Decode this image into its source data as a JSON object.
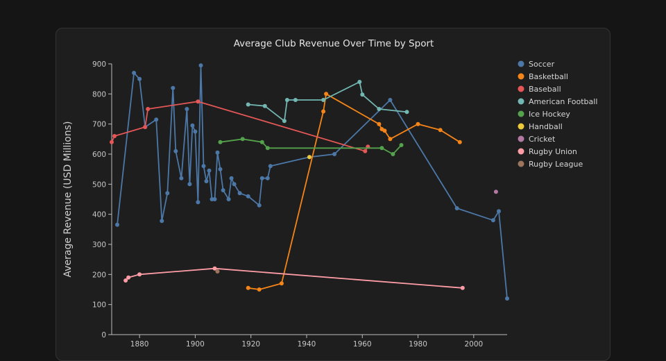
{
  "chart_data": {
    "type": "line",
    "title": "Average Club Revenue Over Time by Sport",
    "xlabel": "",
    "ylabel": "Average Revenue (USD Millions)",
    "xlim": [
      1870,
      2012
    ],
    "ylim": [
      0,
      900
    ],
    "x_ticks": [
      1880,
      1900,
      1920,
      1940,
      1960,
      1980,
      2000
    ],
    "y_ticks": [
      0,
      100,
      200,
      300,
      400,
      500,
      600,
      700,
      800,
      900
    ],
    "grid": false,
    "legend_position": "right",
    "series": [
      {
        "name": "Soccer",
        "color": "#4c78a8",
        "points": [
          [
            1872,
            365
          ],
          [
            1878,
            870
          ],
          [
            1880,
            850
          ],
          [
            1882,
            690
          ],
          [
            1886,
            715
          ],
          [
            1888,
            378
          ],
          [
            1890,
            470
          ],
          [
            1892,
            820
          ],
          [
            1893,
            610
          ],
          [
            1895,
            520
          ],
          [
            1897,
            750
          ],
          [
            1898,
            500
          ],
          [
            1899,
            695
          ],
          [
            1900,
            675
          ],
          [
            1901,
            440
          ],
          [
            1902,
            895
          ],
          [
            1903,
            560
          ],
          [
            1904,
            510
          ],
          [
            1905,
            545
          ],
          [
            1906,
            450
          ],
          [
            1907,
            450
          ],
          [
            1908,
            605
          ],
          [
            1909,
            550
          ],
          [
            1910,
            480
          ],
          [
            1912,
            450
          ],
          [
            1913,
            520
          ],
          [
            1914,
            500
          ],
          [
            1916,
            470
          ],
          [
            1919,
            460
          ],
          [
            1923,
            430
          ],
          [
            1924,
            520
          ],
          [
            1926,
            520
          ],
          [
            1927,
            560
          ],
          [
            1941,
            590
          ],
          [
            1950,
            600
          ],
          [
            1970,
            780
          ],
          [
            1994,
            420
          ],
          [
            2007,
            380
          ],
          [
            2009,
            410
          ],
          [
            2012,
            120
          ]
        ]
      },
      {
        "name": "Basketball",
        "color": "#f58518",
        "points": [
          [
            1919,
            155
          ],
          [
            1923,
            150
          ],
          [
            1931,
            170
          ],
          [
            1946,
            742
          ],
          [
            1947,
            800
          ],
          [
            1966,
            700
          ],
          [
            1967,
            683
          ],
          [
            1968,
            678
          ],
          [
            1970,
            650
          ],
          [
            1980,
            700
          ],
          [
            1988,
            680
          ],
          [
            1995,
            640
          ]
        ]
      },
      {
        "name": "Baseball",
        "color": "#e45756",
        "points": [
          [
            1870,
            640
          ],
          [
            1871,
            660
          ],
          [
            1882,
            690
          ],
          [
            1883,
            750
          ],
          [
            1901,
            775
          ],
          [
            1961,
            610
          ],
          [
            1962,
            625
          ]
        ]
      },
      {
        "name": "American Football",
        "color": "#72b7b2",
        "points": [
          [
            1919,
            765
          ],
          [
            1925,
            760
          ],
          [
            1932,
            710
          ],
          [
            1933,
            780
          ],
          [
            1936,
            780
          ],
          [
            1946,
            780
          ],
          [
            1959,
            840
          ],
          [
            1960,
            798
          ],
          [
            1966,
            750
          ],
          [
            1976,
            740
          ]
        ]
      },
      {
        "name": "Ice Hockey",
        "color": "#54a24b",
        "points": [
          [
            1909,
            640
          ],
          [
            1917,
            650
          ],
          [
            1924,
            640
          ],
          [
            1926,
            620
          ],
          [
            1967,
            620
          ],
          [
            1971,
            600
          ],
          [
            1974,
            630
          ]
        ]
      },
      {
        "name": "Handball",
        "color": "#eeca3b",
        "points": [
          [
            1941,
            590
          ]
        ]
      },
      {
        "name": "Cricket",
        "color": "#b279a2",
        "points": [
          [
            2008,
            475
          ]
        ]
      },
      {
        "name": "Rugby Union",
        "color": "#ff9da6",
        "points": [
          [
            1875,
            180
          ],
          [
            1876,
            190
          ],
          [
            1880,
            200
          ],
          [
            1907,
            220
          ],
          [
            1996,
            155
          ]
        ]
      },
      {
        "name": "Rugby League",
        "color": "#9d755d",
        "points": [
          [
            1908,
            210
          ]
        ]
      }
    ]
  }
}
